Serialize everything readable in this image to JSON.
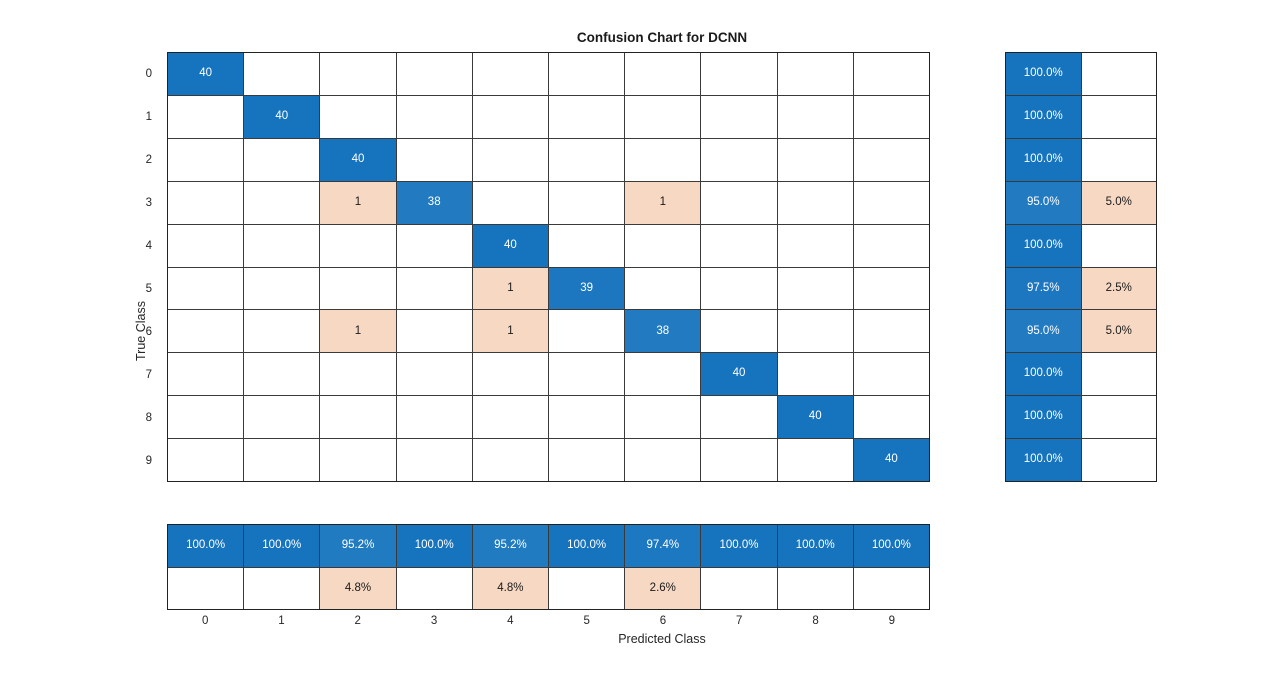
{
  "chart_data": {
    "type": "heatmap",
    "title": "Confusion Chart for DCNN",
    "xlabel": "Predicted Class",
    "ylabel": "True Class",
    "classes": [
      "0",
      "1",
      "2",
      "3",
      "4",
      "5",
      "6",
      "7",
      "8",
      "9"
    ],
    "matrix": [
      [
        40,
        0,
        0,
        0,
        0,
        0,
        0,
        0,
        0,
        0
      ],
      [
        0,
        40,
        0,
        0,
        0,
        0,
        0,
        0,
        0,
        0
      ],
      [
        0,
        0,
        40,
        0,
        0,
        0,
        0,
        0,
        0,
        0
      ],
      [
        0,
        0,
        1,
        38,
        0,
        0,
        1,
        0,
        0,
        0
      ],
      [
        0,
        0,
        0,
        0,
        40,
        0,
        0,
        0,
        0,
        0
      ],
      [
        0,
        0,
        0,
        0,
        1,
        39,
        0,
        0,
        0,
        0
      ],
      [
        0,
        0,
        1,
        0,
        1,
        0,
        38,
        0,
        0,
        0
      ],
      [
        0,
        0,
        0,
        0,
        0,
        0,
        0,
        40,
        0,
        0
      ],
      [
        0,
        0,
        0,
        0,
        0,
        0,
        0,
        0,
        40,
        0
      ],
      [
        0,
        0,
        0,
        0,
        0,
        0,
        0,
        0,
        0,
        40
      ]
    ],
    "max_count": 40,
    "row_summary": {
      "correct": [
        "100.0%",
        "100.0%",
        "100.0%",
        "95.0%",
        "100.0%",
        "97.5%",
        "95.0%",
        "100.0%",
        "100.0%",
        "100.0%"
      ],
      "incorrect": [
        "",
        "",
        "",
        "5.0%",
        "",
        "2.5%",
        "5.0%",
        "",
        "",
        ""
      ]
    },
    "column_summary": {
      "correct": [
        "100.0%",
        "100.0%",
        "95.2%",
        "100.0%",
        "95.2%",
        "100.0%",
        "97.4%",
        "100.0%",
        "100.0%",
        "100.0%"
      ],
      "incorrect": [
        "",
        "",
        "4.8%",
        "",
        "4.8%",
        "",
        "2.6%",
        "",
        "",
        ""
      ]
    },
    "colors": {
      "correct_full": "#1674BE",
      "incorrect_light": "#F6D8C3",
      "grid_line": "#3A3A3A",
      "background": "#FFFFFF",
      "text_light": "#FFFFFF",
      "text_dark": "#1A1A1A"
    }
  }
}
